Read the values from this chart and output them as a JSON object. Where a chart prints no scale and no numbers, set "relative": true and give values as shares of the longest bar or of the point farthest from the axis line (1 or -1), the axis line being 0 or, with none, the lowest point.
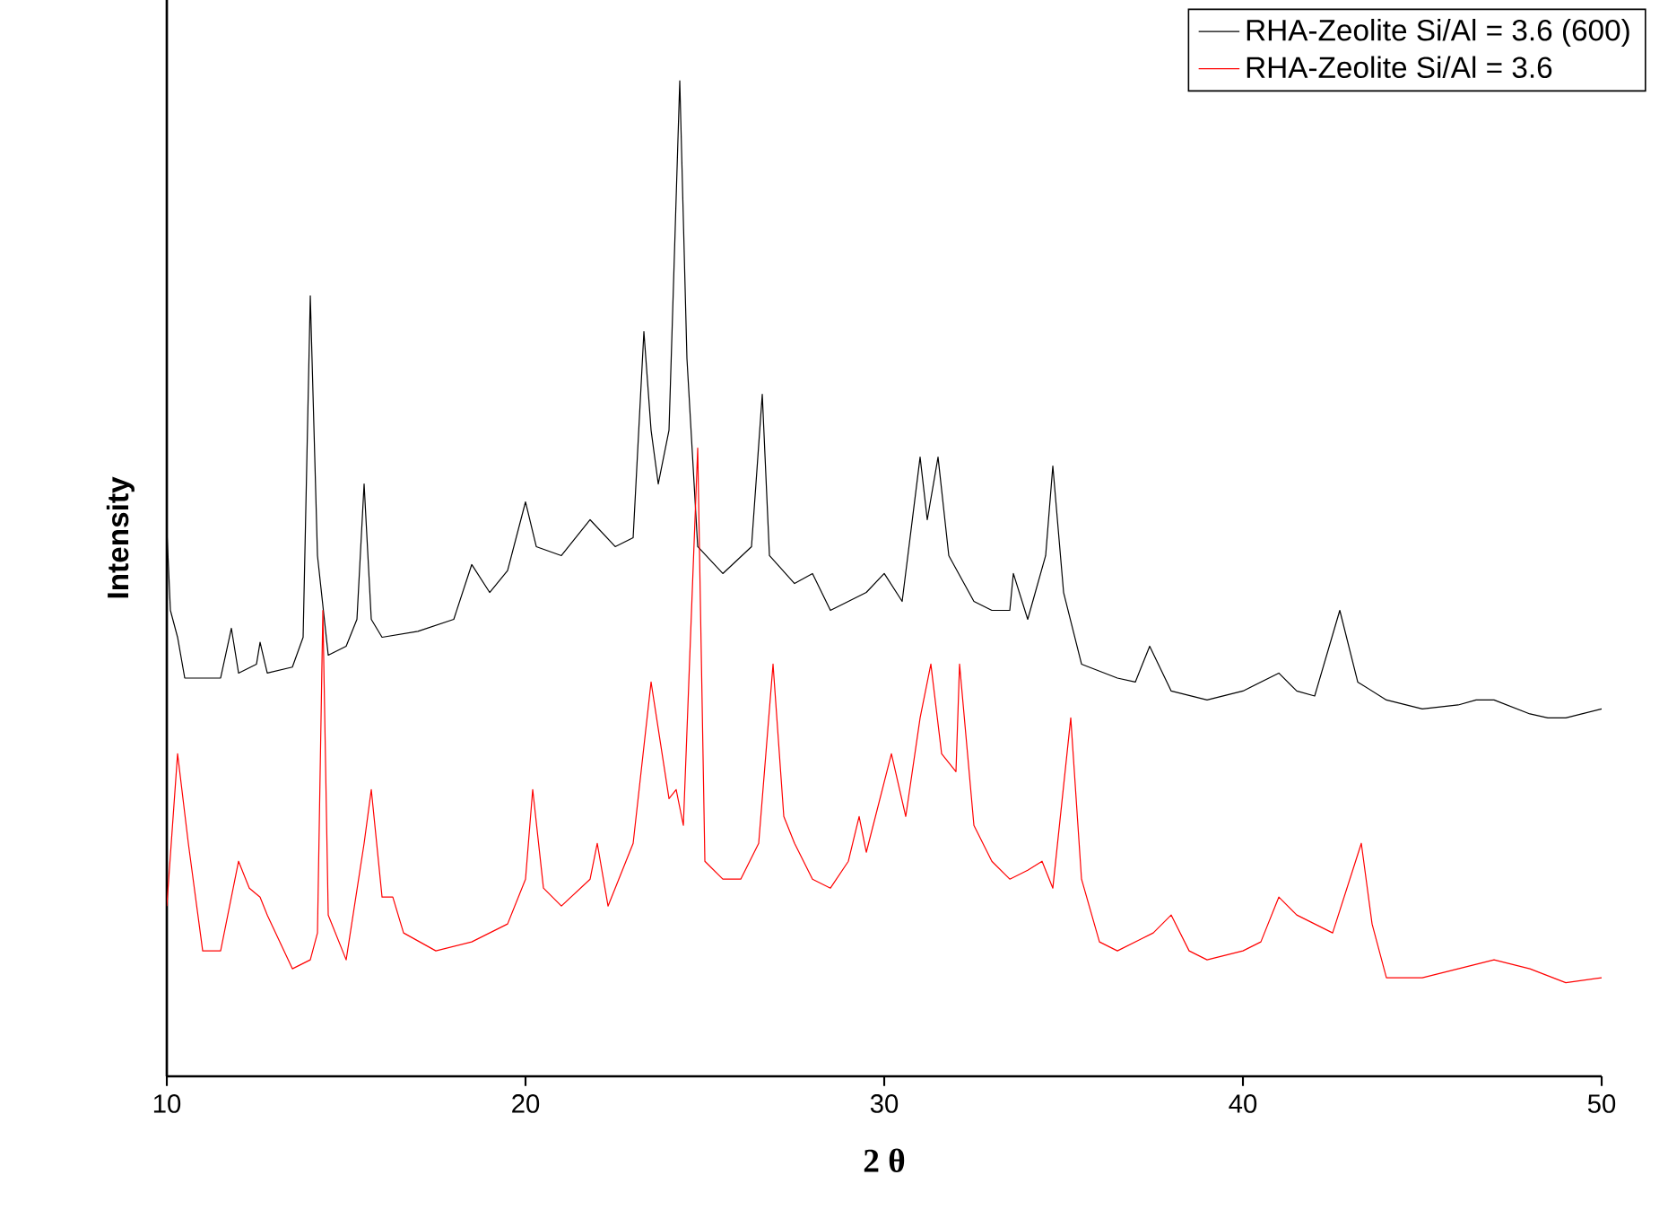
{
  "chart_data": {
    "type": "line",
    "xlabel": "2 θ",
    "ylabel": "Intensity",
    "relative": true,
    "xlim": [
      10,
      50
    ],
    "xticks": [
      10,
      20,
      30,
      40,
      50
    ],
    "legend": "top right",
    "marker": "none",
    "series": [
      {
        "name": "RHA-Zeolite Si/Al = 3.6 (600)",
        "color": "#000000",
        "x": [
          10.0,
          10.1,
          10.3,
          10.5,
          11.0,
          11.5,
          11.8,
          12.0,
          12.5,
          12.6,
          12.8,
          13.5,
          13.8,
          14.0,
          14.2,
          14.5,
          15.0,
          15.3,
          15.5,
          15.7,
          16.0,
          17.0,
          18.0,
          18.5,
          19.0,
          19.5,
          20.0,
          20.3,
          21.0,
          21.8,
          22.5,
          23.0,
          23.3,
          23.5,
          23.7,
          24.0,
          24.3,
          24.5,
          24.8,
          25.5,
          26.3,
          26.6,
          26.8,
          27.5,
          28.0,
          28.5,
          29.5,
          30.0,
          30.5,
          31.0,
          31.2,
          31.5,
          31.8,
          32.5,
          33.0,
          33.5,
          33.6,
          34.0,
          34.5,
          34.7,
          35.0,
          35.5,
          36.5,
          37.0,
          37.4,
          38.0,
          39.0,
          40.0,
          41.0,
          41.5,
          42.0,
          42.7,
          43.2,
          44.0,
          45.0,
          46.0,
          46.5,
          47.0,
          48.0,
          48.5,
          49.0,
          50.0
        ],
        "values": [
          0.55,
          0.468,
          0.441,
          0.4,
          0.4,
          0.4,
          0.45,
          0.405,
          0.414,
          0.436,
          0.405,
          0.411,
          0.441,
          0.784,
          0.523,
          0.423,
          0.432,
          0.459,
          0.595,
          0.459,
          0.441,
          0.447,
          0.459,
          0.514,
          0.486,
          0.508,
          0.577,
          0.532,
          0.523,
          0.559,
          0.532,
          0.541,
          0.748,
          0.649,
          0.595,
          0.649,
          1,
          0.721,
          0.532,
          0.505,
          0.532,
          0.685,
          0.523,
          0.495,
          0.505,
          0.468,
          0.486,
          0.505,
          0.477,
          0.622,
          0.559,
          0.622,
          0.523,
          0.477,
          0.468,
          0.468,
          0.505,
          0.459,
          0.523,
          0.613,
          0.486,
          0.414,
          0.4,
          0.396,
          0.432,
          0.387,
          0.378,
          0.387,
          0.405,
          0.387,
          0.382,
          0.468,
          0.396,
          0.378,
          0.369,
          0.373,
          0.378,
          0.378,
          0.364,
          0.36,
          0.36,
          0.369
        ]
      },
      {
        "name": "RHA-Zeolite Si/Al = 3.6",
        "color": "#ff0000",
        "x": [
          10.0,
          10.3,
          10.6,
          11.0,
          11.5,
          12.0,
          12.3,
          12.6,
          12.8,
          13.5,
          14.0,
          14.2,
          14.35,
          14.5,
          15.0,
          15.5,
          15.7,
          16.0,
          16.3,
          16.6,
          17.5,
          18.5,
          19.5,
          20.0,
          20.2,
          20.5,
          21.0,
          21.8,
          22.0,
          22.3,
          23.0,
          23.5,
          24.0,
          24.2,
          24.4,
          24.8,
          25.0,
          25.5,
          26.0,
          26.5,
          26.9,
          27.2,
          27.5,
          28.0,
          28.5,
          29.0,
          29.3,
          29.5,
          30.2,
          30.6,
          31.0,
          31.3,
          31.6,
          32.0,
          32.1,
          32.5,
          33.0,
          33.5,
          34.0,
          34.4,
          34.7,
          35.2,
          35.5,
          36.0,
          36.5,
          37.5,
          38.0,
          38.5,
          39.0,
          40.0,
          40.5,
          41.0,
          41.5,
          42.0,
          42.5,
          43.3,
          43.6,
          44.0,
          45.0,
          46.0,
          47.0,
          48.0,
          49.0,
          50.0
        ],
        "values": [
          0.171,
          0.324,
          0.234,
          0.126,
          0.126,
          0.216,
          0.189,
          0.18,
          0.162,
          0.108,
          0.117,
          0.144,
          0.468,
          0.162,
          0.117,
          0.234,
          0.288,
          0.18,
          0.18,
          0.144,
          0.126,
          0.135,
          0.153,
          0.198,
          0.288,
          0.189,
          0.171,
          0.198,
          0.234,
          0.171,
          0.234,
          0.396,
          0.279,
          0.288,
          0.252,
          0.631,
          0.216,
          0.198,
          0.198,
          0.234,
          0.414,
          0.261,
          0.234,
          0.198,
          0.189,
          0.216,
          0.261,
          0.225,
          0.324,
          0.261,
          0.36,
          0.414,
          0.324,
          0.306,
          0.414,
          0.252,
          0.216,
          0.198,
          0.207,
          0.216,
          0.189,
          0.36,
          0.198,
          0.135,
          0.126,
          0.144,
          0.162,
          0.126,
          0.117,
          0.126,
          0.135,
          0.18,
          0.162,
          0.153,
          0.144,
          0.234,
          0.153,
          0.099,
          0.099,
          0.108,
          0.117,
          0.108,
          0.094,
          0.099
        ]
      }
    ]
  }
}
